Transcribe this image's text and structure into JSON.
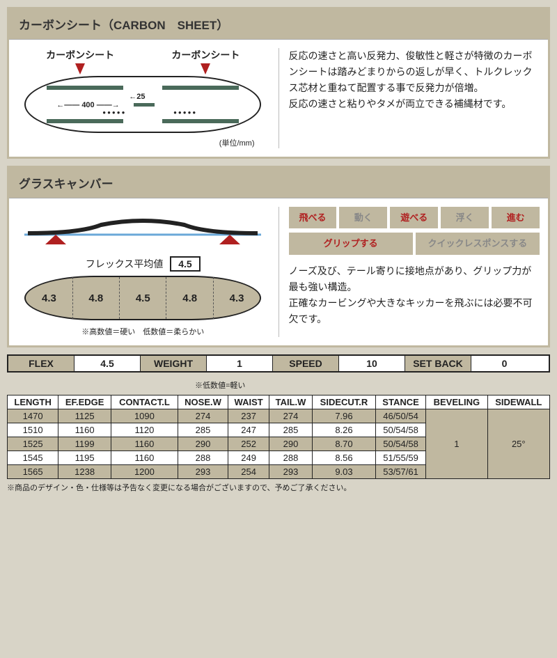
{
  "colors": {
    "beige": "#c0b8a0",
    "red": "#b02020",
    "bg": "#d8d4c7",
    "stripe": "#4a6a5a"
  },
  "carbon": {
    "title": "カーボンシート（CARBON　SHEET）",
    "label_left": "カーボンシート",
    "label_right": "カーボンシート",
    "dim1": "400",
    "dim2": "25",
    "unit_note": "(単位/mm)",
    "text": "反応の速さと高い反発力、俊敏性と軽さが特徴のカーボンシートは踏みどまりからの返しが早く、トルクレックス芯材と重ねて配置する事で反発力が倍増。\n反応の速さと粘りやタメが両立できる補縄材です。"
  },
  "camber": {
    "title": "グラスキャンバー",
    "flex_avg_label": "フレックス平均値",
    "flex_avg_value": "4.5",
    "flex_values": [
      "4.3",
      "4.8",
      "4.5",
      "4.8",
      "4.3"
    ],
    "flex_note": "※高数値＝硬い　低数値＝柔らかい",
    "tags_row1": [
      {
        "label": "飛べる",
        "active": true
      },
      {
        "label": "動く",
        "active": false
      },
      {
        "label": "遊べる",
        "active": true
      },
      {
        "label": "浮く",
        "active": false
      },
      {
        "label": "進む",
        "active": true
      }
    ],
    "tags_row2": [
      {
        "label": "グリップする",
        "active": true
      },
      {
        "label": "クイックレスポンスする",
        "active": false
      }
    ],
    "desc": "ノーズ及び、テール寄りに接地点があり、グリップ力が最も強い構造。\n正確なカービングや大きなキッカーを飛ぶには必要不可欠です。"
  },
  "summary": {
    "items": [
      {
        "label": "FLEX",
        "value": "4.5"
      },
      {
        "label": "WEIGHT",
        "value": "1"
      },
      {
        "label": "SPEED",
        "value": "10"
      },
      {
        "label": "SET BACK",
        "value": "0"
      }
    ],
    "note": "※低数値=軽い"
  },
  "spec": {
    "columns": [
      "LENGTH",
      "EF.EDGE",
      "CONTACT.L",
      "NOSE.W",
      "WAIST",
      "TAIL.W",
      "SIDECUT.R",
      "STANCE",
      "BEVELING",
      "SIDEWALL"
    ],
    "rows": [
      [
        "1470",
        "1125",
        "1090",
        "274",
        "237",
        "274",
        "7.96",
        "46/50/54"
      ],
      [
        "1510",
        "1160",
        "1120",
        "285",
        "247",
        "285",
        "8.26",
        "50/54/58"
      ],
      [
        "1525",
        "1199",
        "1160",
        "290",
        "252",
        "290",
        "8.70",
        "50/54/58"
      ],
      [
        "1545",
        "1195",
        "1160",
        "288",
        "249",
        "288",
        "8.56",
        "51/55/59"
      ],
      [
        "1565",
        "1238",
        "1200",
        "293",
        "254",
        "293",
        "9.03",
        "53/57/61"
      ]
    ],
    "beveling": "1",
    "sidewall": "25°",
    "shaded_rows": [
      0,
      2,
      4
    ]
  },
  "footnote": "※商品のデザイン・色・仕様等は予告なく変更になる場合がございますので、予めご了承ください。"
}
